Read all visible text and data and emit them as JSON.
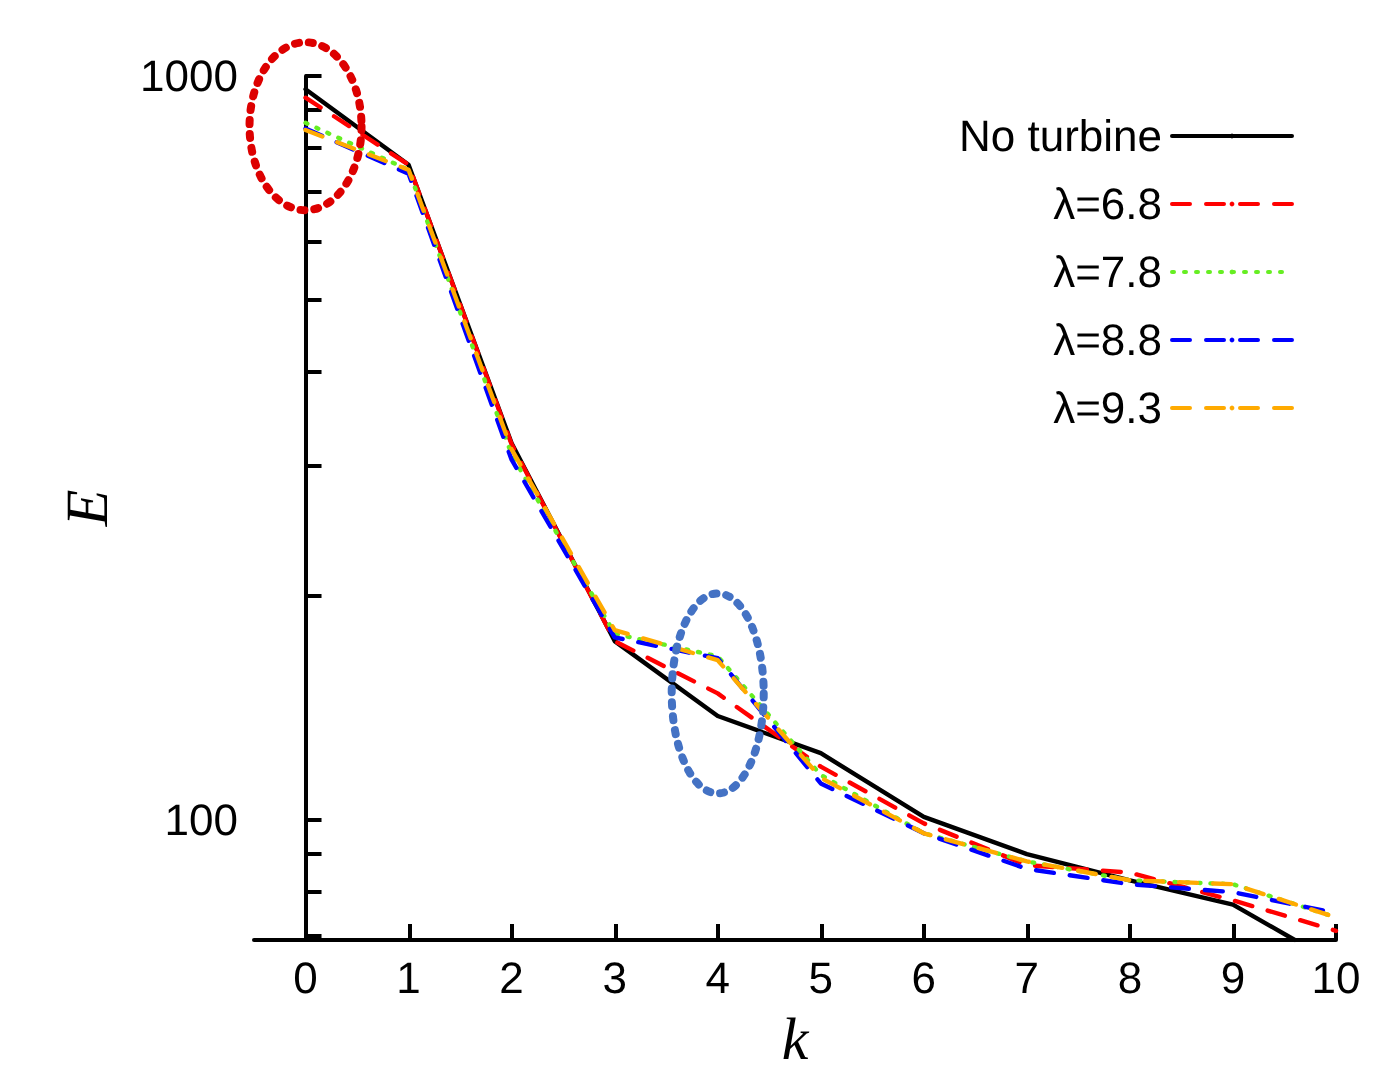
{
  "chart_data": {
    "type": "line",
    "xlabel": "k",
    "ylabel": "E",
    "log": "y",
    "xlim": [
      -0.5,
      10
    ],
    "xticks": [
      0,
      1,
      2,
      3,
      4,
      5,
      6,
      7,
      8,
      9,
      10
    ],
    "ylim": [
      69,
      1000
    ],
    "yticks": [
      {
        "value": 70,
        "label": null
      },
      {
        "value": 80,
        "label": null
      },
      {
        "value": 90,
        "label": null
      },
      100,
      {
        "value": 200,
        "label": null
      },
      {
        "value": 300,
        "label": null
      },
      {
        "value": 400,
        "label": null
      },
      {
        "value": 500,
        "label": null
      },
      {
        "value": 600,
        "label": null
      },
      {
        "value": 700,
        "label": null
      },
      {
        "value": 800,
        "label": null
      },
      {
        "value": 900,
        "label": null
      },
      1000
    ],
    "legend": "top right",
    "marker": "none",
    "grid": false,
    "x": [
      0,
      1,
      2,
      3,
      4,
      5,
      6,
      7,
      8,
      9,
      10
    ],
    "series": [
      {
        "name": "No turbine",
        "color": "#000000",
        "line_style": "solid",
        "x": [
          0,
          1,
          2,
          3,
          4,
          5,
          6,
          7,
          8,
          9,
          9.6
        ],
        "values": [
          960,
          760,
          321,
          174,
          138,
          123,
          101,
          90,
          83,
          77,
          69
        ]
      },
      {
        "name": "λ=6.8",
        "color": "#ff0000",
        "line_style": "dashed",
        "values": [
          935,
          760,
          320,
          174,
          148,
          118,
          99,
          87,
          85,
          78,
          71
        ]
      },
      {
        "name": "λ=7.8",
        "color": "#66ee22",
        "line_style": "dotted",
        "values": [
          865,
          748,
          310,
          178,
          166,
          115,
          96,
          88,
          83,
          82,
          74
        ]
      },
      {
        "name": "λ=8.8",
        "color": "#0000ff",
        "line_style": "dashed",
        "values": [
          850,
          739,
          305,
          176,
          165,
          112,
          96,
          86,
          82,
          80,
          75
        ]
      },
      {
        "name": "λ=9.3",
        "color": "#ffaa00",
        "line_style": "dashed",
        "values": [
          846,
          748,
          315,
          180,
          164,
          114,
          96,
          88,
          83,
          82,
          74
        ]
      }
    ]
  }
}
